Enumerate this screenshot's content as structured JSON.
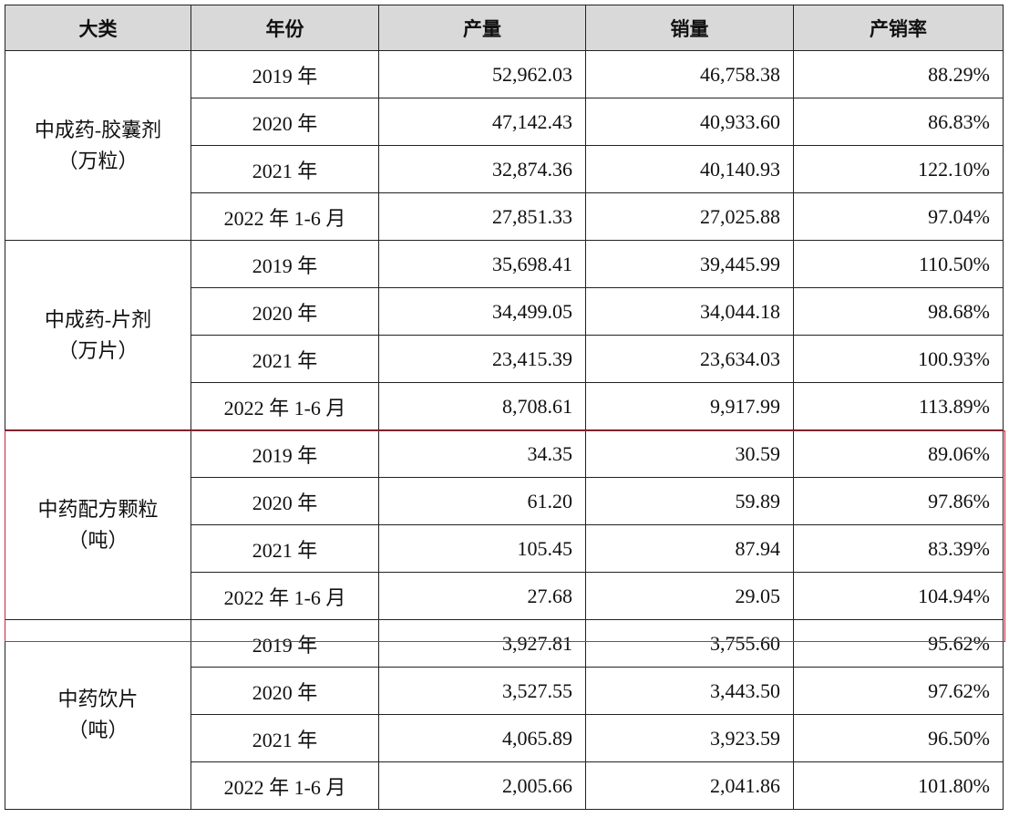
{
  "table": {
    "header": [
      "大类",
      "年份",
      "产量",
      "销量",
      "产销率"
    ],
    "groups": [
      {
        "category": "中成药-胶囊剂",
        "unit": "（万粒）",
        "rows": [
          [
            "2019 年",
            "52,962.03",
            "46,758.38",
            "88.29%"
          ],
          [
            "2020 年",
            "47,142.43",
            "40,933.60",
            "86.83%"
          ],
          [
            "2021 年",
            "32,874.36",
            "40,140.93",
            "122.10%"
          ],
          [
            "2022 年 1-6 月",
            "27,851.33",
            "27,025.88",
            "97.04%"
          ]
        ]
      },
      {
        "category": "中成药-片剂",
        "unit": "（万片）",
        "rows": [
          [
            "2019 年",
            "35,698.41",
            "39,445.99",
            "110.50%"
          ],
          [
            "2020 年",
            "34,499.05",
            "34,044.18",
            "98.68%"
          ],
          [
            "2021 年",
            "23,415.39",
            "23,634.03",
            "100.93%"
          ],
          [
            "2022 年 1-6 月",
            "8,708.61",
            "9,917.99",
            "113.89%"
          ]
        ]
      },
      {
        "category": "中药配方颗粒",
        "unit": "（吨）",
        "rows": [
          [
            "2019 年",
            "34.35",
            "30.59",
            "89.06%"
          ],
          [
            "2020 年",
            "61.20",
            "59.89",
            "97.86%"
          ],
          [
            "2021 年",
            "105.45",
            "87.94",
            "83.39%"
          ],
          [
            "2022 年 1-6 月",
            "27.68",
            "29.05",
            "104.94%"
          ]
        ]
      },
      {
        "category": "中药饮片",
        "unit": "（吨）",
        "rows": [
          [
            "2019 年",
            "3,927.81",
            "3,755.60",
            "95.62%"
          ],
          [
            "2020 年",
            "3,527.55",
            "3,443.50",
            "97.62%"
          ],
          [
            "2021 年",
            "4,065.89",
            "3,923.59",
            "96.50%"
          ],
          [
            "2022 年 1-6 月",
            "2,005.66",
            "2,041.86",
            "101.80%"
          ]
        ]
      }
    ]
  }
}
